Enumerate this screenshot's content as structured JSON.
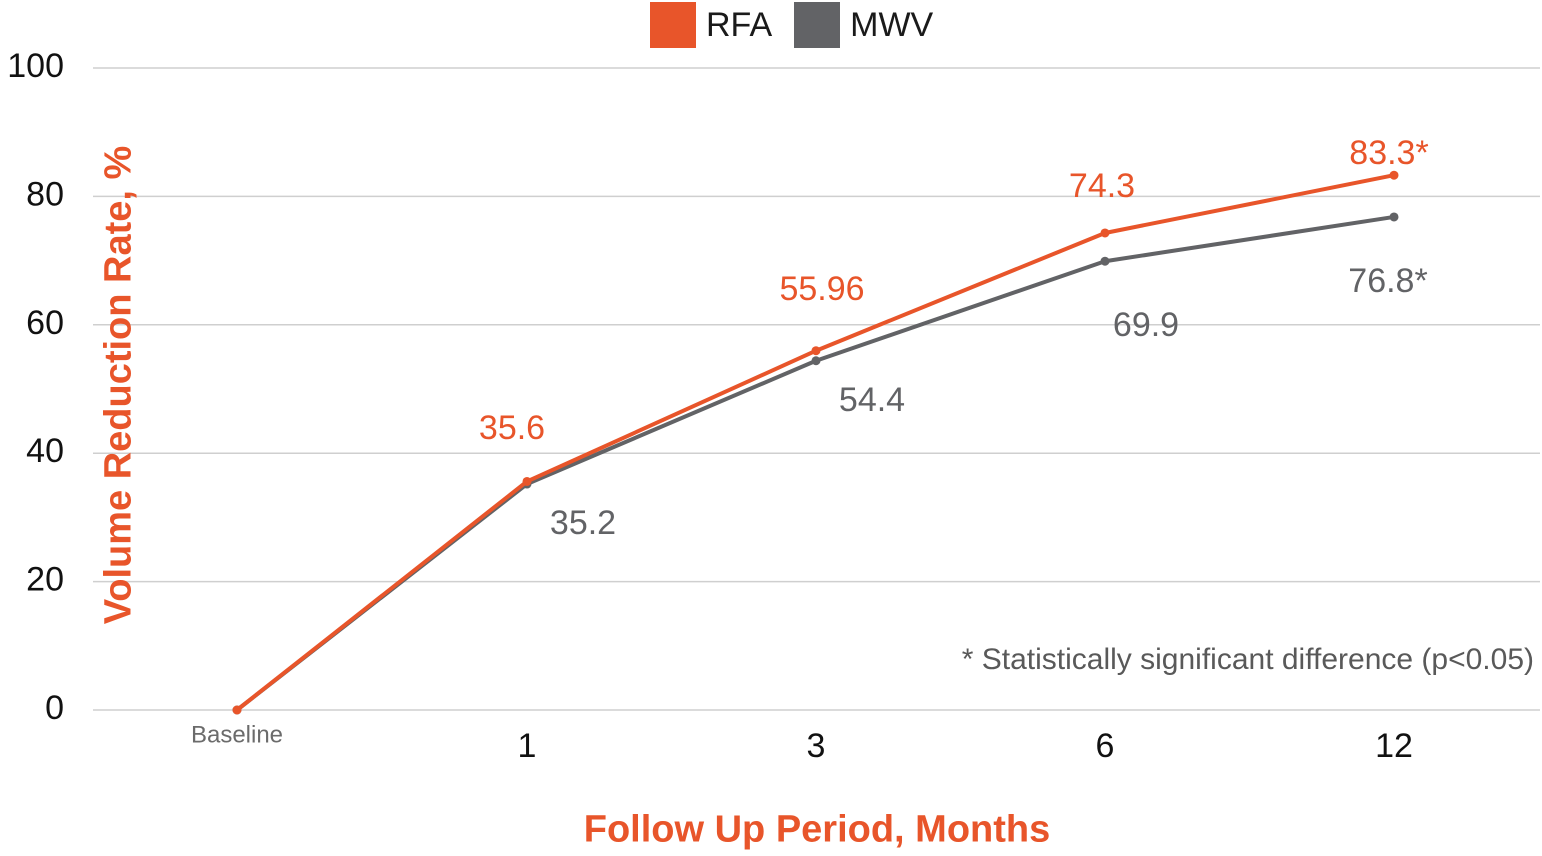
{
  "colors": {
    "accent": "#E8552A",
    "secondary": "#626366",
    "grid": "#cfcfcf",
    "axis_text": "#111111",
    "baseline_text": "#6b6b6b"
  },
  "legend": [
    {
      "name": "RFA",
      "color": "#E8552A"
    },
    {
      "name": "MWV",
      "color": "#626366"
    }
  ],
  "footnote": "* Statistically significant difference (p<0.05)",
  "chart_data": {
    "type": "line",
    "categories": [
      "Baseline",
      "1",
      "3",
      "6",
      "12"
    ],
    "xlabel": "Follow Up Period, Months",
    "ylabel": "Volume Reduction Rate, %",
    "ylim": [
      0,
      100
    ],
    "yticks": [
      0,
      20,
      40,
      60,
      80,
      100
    ],
    "grid": true,
    "legend_position": "top-center",
    "series": [
      {
        "name": "RFA",
        "color": "#E8552A",
        "values": [
          0,
          35.6,
          55.96,
          74.3,
          83.3
        ],
        "labels": [
          "",
          "35.6",
          "55.96",
          "74.3",
          "83.3*"
        ]
      },
      {
        "name": "MWV",
        "color": "#626366",
        "values": [
          0,
          35.2,
          54.4,
          69.9,
          76.8
        ],
        "labels": [
          "",
          "35.2",
          "54.4",
          "69.9",
          "76.8*"
        ]
      }
    ]
  }
}
